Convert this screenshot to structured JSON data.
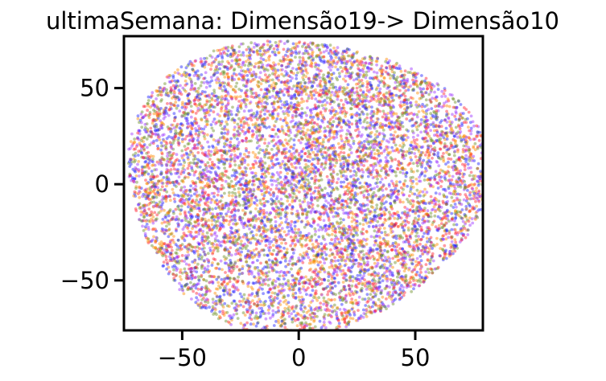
{
  "chart_data": {
    "type": "scatter",
    "title": "ultimaSemana: Dimensão19-> Dimensão10",
    "xlabel": "",
    "ylabel": "",
    "xlim": [
      -75,
      79
    ],
    "ylim": [
      -76,
      77
    ],
    "xticks": [
      {
        "value": -50,
        "label": "−50"
      },
      {
        "value": 0,
        "label": "0"
      },
      {
        "value": 50,
        "label": "50"
      }
    ],
    "yticks": [
      {
        "value": 50,
        "label": "50"
      },
      {
        "value": 0,
        "label": "0"
      },
      {
        "value": -50,
        "label": "−50"
      }
    ],
    "grid": false,
    "legend": "none",
    "point_cloud": {
      "shape": "roughly circular",
      "center": [
        0,
        0
      ],
      "x_extent": [
        -75,
        79
      ],
      "y_extent": [
        -76,
        77
      ],
      "approx_point_count": 9000,
      "colors": [
        "#1f1fff",
        "#ff8c00",
        "#9b30ff",
        "#ff2030",
        "#6b8e23"
      ],
      "opacity": 0.45
    }
  }
}
